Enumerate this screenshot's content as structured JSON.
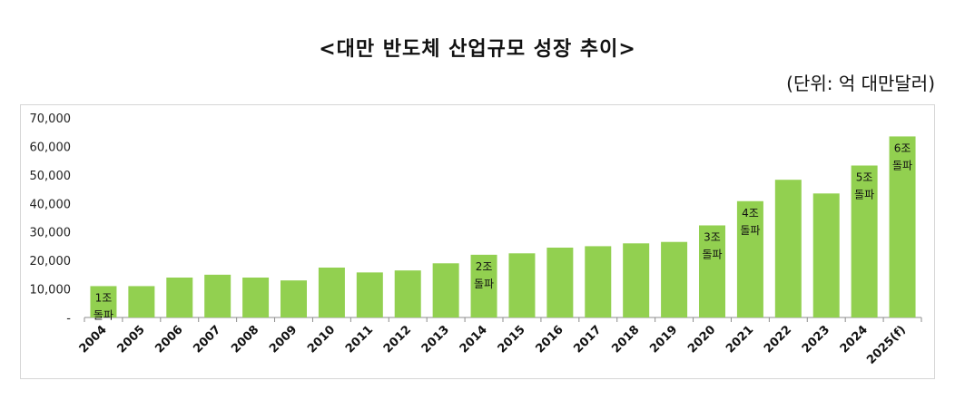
{
  "chart_data": {
    "type": "bar",
    "title": "<대만 반도체 산업규모 성장 추이>",
    "unit_label": "(단위: 억 대만달러)",
    "ylim": [
      0,
      70000
    ],
    "yticks": [
      0,
      10000,
      20000,
      30000,
      40000,
      50000,
      60000,
      70000
    ],
    "ytick_labels": [
      "-",
      "10,000",
      "20,000",
      "30,000",
      "40,000",
      "50,000",
      "60,000",
      "70,000"
    ],
    "categories": [
      "2004",
      "2005",
      "2006",
      "2007",
      "2008",
      "2009",
      "2010",
      "2011",
      "2012",
      "2013",
      "2014",
      "2015",
      "2016",
      "2017",
      "2018",
      "2019",
      "2020",
      "2021",
      "2022",
      "2023",
      "2024",
      "2025(f)"
    ],
    "values": [
      11000,
      11000,
      14000,
      15000,
      14000,
      13000,
      17500,
      15800,
      16500,
      19000,
      22000,
      22500,
      24500,
      25000,
      26000,
      26500,
      32300,
      40800,
      48300,
      43500,
      53300,
      63500
    ],
    "annotations": [
      {
        "category": "2004",
        "lines": [
          "1조",
          "돌파"
        ]
      },
      {
        "category": "2014",
        "lines": [
          "2조",
          "돌파"
        ]
      },
      {
        "category": "2020",
        "lines": [
          "3조",
          "돌파"
        ]
      },
      {
        "category": "2021",
        "lines": [
          "4조",
          "돌파"
        ]
      },
      {
        "category": "2024",
        "lines": [
          "5조",
          "돌파"
        ]
      },
      {
        "category": "2025(f)",
        "lines": [
          "6조",
          "돌파"
        ]
      }
    ],
    "bar_color": "#92d050",
    "grid": false,
    "legend": "none"
  }
}
